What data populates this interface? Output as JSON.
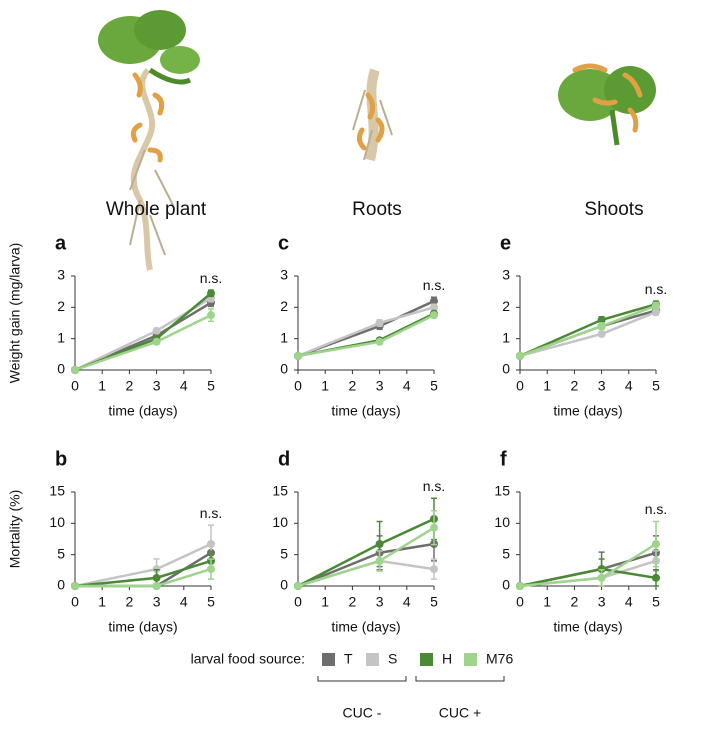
{
  "columns": [
    "Whole plant",
    "Roots",
    "Shoots"
  ],
  "legend": {
    "title": "larval food source:",
    "groups": [
      "CUC -",
      "CUC +"
    ]
  },
  "chart_data": [
    {
      "type": "line",
      "panel": "a",
      "ylabel": "Weight gain (mg/larva)",
      "xlabel": "time (days)",
      "annotation": "n.s.",
      "x": [
        0,
        3,
        5
      ],
      "xlim": [
        0,
        5
      ],
      "xticks": [
        0,
        1,
        2,
        3,
        4,
        5
      ],
      "ylim": [
        0,
        3
      ],
      "yticks": [
        0,
        1,
        2,
        3
      ],
      "series": [
        {
          "name": "T",
          "color": "#6e6e6e",
          "values": [
            0,
            1.1,
            2.15
          ],
          "errors": [
            null,
            0.08,
            0.12
          ]
        },
        {
          "name": "S",
          "color": "#c4c4c4",
          "values": [
            0,
            1.25,
            2.3
          ],
          "errors": [
            null,
            0.08,
            0.12
          ]
        },
        {
          "name": "H",
          "color": "#4a8a36",
          "values": [
            0,
            1.0,
            2.45
          ],
          "errors": [
            null,
            0.08,
            0.1
          ]
        },
        {
          "name": "M76",
          "color": "#9fd48c",
          "values": [
            0,
            0.9,
            1.75
          ],
          "errors": [
            null,
            0.08,
            0.2
          ]
        }
      ]
    },
    {
      "type": "line",
      "panel": "c",
      "xlabel": "time (days)",
      "annotation": "n.s.",
      "x": [
        0,
        3,
        5
      ],
      "xlim": [
        0,
        5
      ],
      "xticks": [
        0,
        1,
        2,
        3,
        4,
        5
      ],
      "ylim": [
        0,
        3
      ],
      "yticks": [
        0,
        1,
        2,
        3
      ],
      "series": [
        {
          "name": "T",
          "color": "#6e6e6e",
          "values": [
            0.45,
            1.4,
            2.2
          ],
          "errors": [
            null,
            0.1,
            0.12
          ]
        },
        {
          "name": "S",
          "color": "#c4c4c4",
          "values": [
            0.45,
            1.5,
            2.0
          ],
          "errors": [
            null,
            0.1,
            0.1
          ]
        },
        {
          "name": "H",
          "color": "#4a8a36",
          "values": [
            0.45,
            0.95,
            1.8
          ],
          "errors": [
            null,
            0.06,
            0.08
          ]
        },
        {
          "name": "M76",
          "color": "#9fd48c",
          "values": [
            0.45,
            0.9,
            1.75
          ],
          "errors": [
            null,
            0.06,
            0.08
          ]
        }
      ]
    },
    {
      "type": "line",
      "panel": "e",
      "xlabel": "time (days)",
      "annotation": "n.s.",
      "x": [
        0,
        3,
        5
      ],
      "xlim": [
        0,
        5
      ],
      "xticks": [
        0,
        1,
        2,
        3,
        4,
        5
      ],
      "ylim": [
        0,
        3
      ],
      "yticks": [
        0,
        1,
        2,
        3
      ],
      "series": [
        {
          "name": "T",
          "color": "#6e6e6e",
          "values": [
            0.45,
            1.4,
            1.9
          ],
          "errors": [
            null,
            0.1,
            0.1
          ]
        },
        {
          "name": "S",
          "color": "#c4c4c4",
          "values": [
            0.45,
            1.15,
            1.85
          ],
          "errors": [
            null,
            0.08,
            0.1
          ]
        },
        {
          "name": "H",
          "color": "#4a8a36",
          "values": [
            0.45,
            1.6,
            2.1
          ],
          "errors": [
            null,
            0.1,
            0.1
          ]
        },
        {
          "name": "M76",
          "color": "#9fd48c",
          "values": [
            0.45,
            1.4,
            2.05
          ],
          "errors": [
            null,
            0.1,
            0.1
          ]
        }
      ]
    },
    {
      "type": "line",
      "panel": "b",
      "ylabel": "Mortality (%)",
      "xlabel": "time (days)",
      "annotation": "n.s.",
      "x": [
        0,
        3,
        5
      ],
      "xlim": [
        0,
        5
      ],
      "xticks": [
        0,
        1,
        2,
        3,
        4,
        5
      ],
      "ylim": [
        0,
        15
      ],
      "yticks": [
        0,
        5,
        10,
        15
      ],
      "series": [
        {
          "name": "T",
          "color": "#6e6e6e",
          "values": [
            0,
            0,
            5.3
          ],
          "errors": [
            null,
            null,
            1.5
          ]
        },
        {
          "name": "S",
          "color": "#c4c4c4",
          "values": [
            0,
            2.7,
            6.7
          ],
          "errors": [
            null,
            1.6,
            3.0
          ]
        },
        {
          "name": "H",
          "color": "#4a8a36",
          "values": [
            0,
            1.3,
            4.0
          ],
          "errors": [
            null,
            1.3,
            1.5
          ]
        },
        {
          "name": "M76",
          "color": "#9fd48c",
          "values": [
            0,
            0,
            2.7
          ],
          "errors": [
            null,
            null,
            1.6
          ]
        }
      ]
    },
    {
      "type": "line",
      "panel": "d",
      "xlabel": "time (days)",
      "annotation": "n.s.",
      "x": [
        0,
        3,
        5
      ],
      "xlim": [
        0,
        5
      ],
      "xticks": [
        0,
        1,
        2,
        3,
        4,
        5
      ],
      "ylim": [
        0,
        15
      ],
      "yticks": [
        0,
        5,
        10,
        15
      ],
      "series": [
        {
          "name": "T",
          "color": "#6e6e6e",
          "values": [
            0,
            5.3,
            6.7
          ],
          "errors": [
            null,
            2.7,
            2.7
          ]
        },
        {
          "name": "S",
          "color": "#c4c4c4",
          "values": [
            0,
            4.0,
            2.7
          ],
          "errors": [
            null,
            1.6,
            1.6
          ]
        },
        {
          "name": "H",
          "color": "#4a8a36",
          "values": [
            0,
            6.7,
            10.7
          ],
          "errors": [
            null,
            3.6,
            3.3
          ]
        },
        {
          "name": "M76",
          "color": "#9fd48c",
          "values": [
            0,
            4.0,
            9.3
          ],
          "errors": [
            null,
            1.6,
            2.7
          ]
        }
      ]
    },
    {
      "type": "line",
      "panel": "f",
      "xlabel": "time (days)",
      "annotation": "n.s.",
      "x": [
        0,
        3,
        5
      ],
      "xlim": [
        0,
        5
      ],
      "xticks": [
        0,
        1,
        2,
        3,
        4,
        5
      ],
      "ylim": [
        0,
        15
      ],
      "yticks": [
        0,
        5,
        10,
        15
      ],
      "series": [
        {
          "name": "T",
          "color": "#6e6e6e",
          "values": [
            0,
            2.7,
            5.3
          ],
          "errors": [
            null,
            2.7,
            2.7
          ]
        },
        {
          "name": "S",
          "color": "#c4c4c4",
          "values": [
            0,
            1.3,
            4.0
          ],
          "errors": [
            null,
            1.3,
            1.6
          ]
        },
        {
          "name": "H",
          "color": "#4a8a36",
          "values": [
            0,
            2.7,
            1.3
          ],
          "errors": [
            null,
            1.6,
            1.3
          ]
        },
        {
          "name": "M76",
          "color": "#9fd48c",
          "values": [
            0,
            1.3,
            6.7
          ],
          "errors": [
            null,
            1.3,
            3.6
          ]
        }
      ]
    }
  ]
}
